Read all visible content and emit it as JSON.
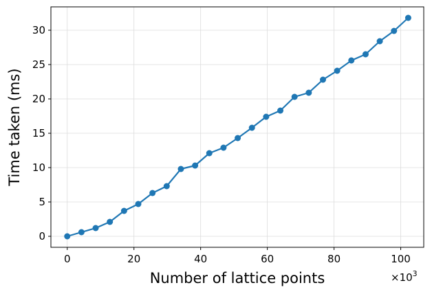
{
  "chart_data": {
    "type": "line",
    "title": "",
    "xlabel": "Number of lattice points",
    "ylabel": "Time taken (ms)",
    "x_multiplier_label": "×10",
    "x_multiplier_exponent": "3",
    "xlim": [
      -4.9,
      106.9
    ],
    "ylim": [
      -1.6,
      33.4
    ],
    "x_ticks": [
      0,
      20,
      40,
      60,
      80,
      100
    ],
    "y_ticks": [
      0,
      5,
      10,
      15,
      20,
      25,
      30
    ],
    "grid": true,
    "series": [
      {
        "color": "#1f77b4",
        "marker": "circle",
        "x": [
          0,
          4.26,
          8.52,
          12.78,
          17.04,
          21.3,
          25.56,
          29.82,
          34.08,
          38.34,
          42.6,
          46.86,
          51.12,
          55.38,
          59.64,
          63.9,
          68.16,
          72.42,
          76.68,
          80.94,
          85.2,
          89.46,
          93.72,
          97.98,
          102.24
        ],
        "y": [
          0.0,
          0.6,
          1.2,
          2.1,
          3.7,
          4.7,
          6.3,
          7.3,
          9.8,
          10.3,
          12.1,
          12.9,
          14.3,
          15.8,
          17.4,
          18.3,
          20.3,
          20.9,
          22.8,
          24.1,
          25.6,
          26.5,
          28.4,
          29.9,
          31.8
        ]
      }
    ]
  }
}
